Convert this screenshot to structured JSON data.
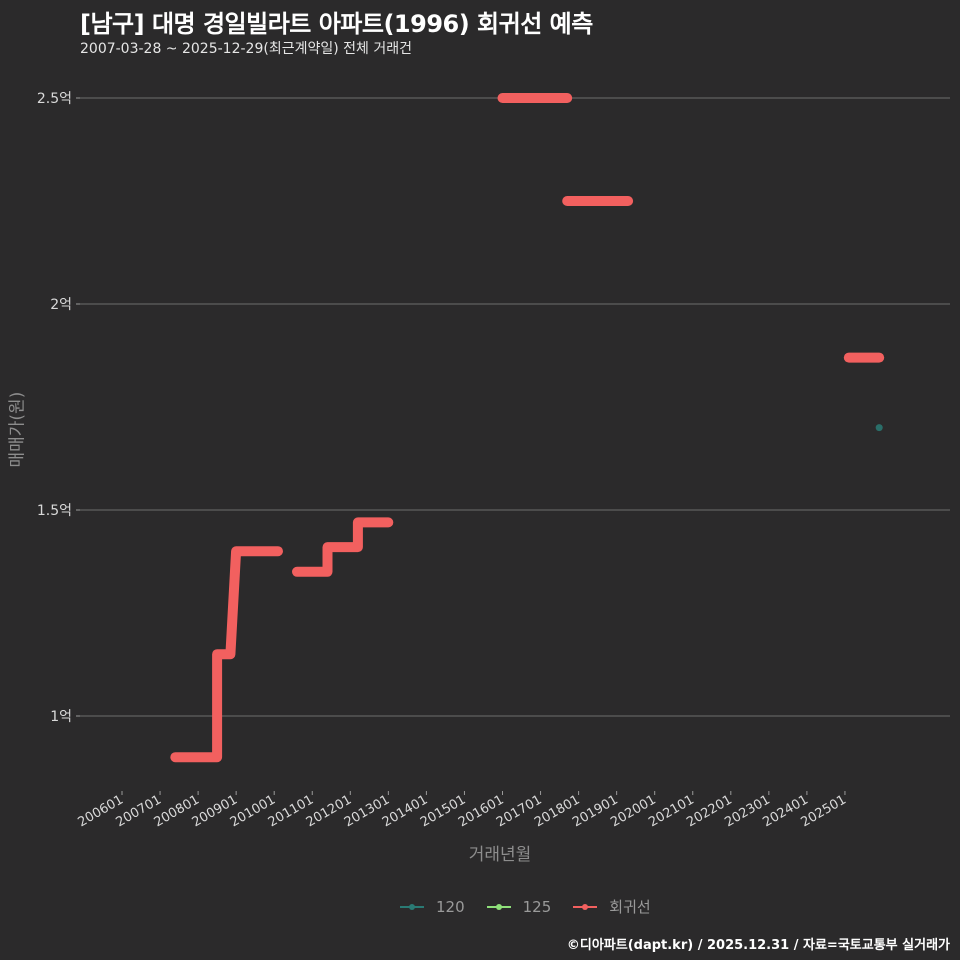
{
  "header": {
    "title": "[남구] 대명 경일빌라트 아파트(1996) 회귀선 예측",
    "subtitle": "2007-03-28 ~ 2025-12-29(최근계약일) 전체 거래건"
  },
  "axes": {
    "ylabel": "매매가(원)",
    "xlabel": "거래년월"
  },
  "legend": {
    "items": [
      {
        "label": "120",
        "color": "#2a7a74"
      },
      {
        "label": "125",
        "color": "#8fe07a"
      },
      {
        "label": "회귀선",
        "color": "#f2605f"
      }
    ]
  },
  "caption": "©디아파트(dapt.kr) / 2025.12.31 / 자료=국토교통부 실거래가",
  "chart_data": {
    "type": "line",
    "title": "[남구] 대명 경일빌라트 아파트(1996) 회귀선 예측",
    "subtitle": "2007-03-28 ~ 2025-12-29(최근계약일) 전체 거래건",
    "xlabel": "거래년월",
    "ylabel": "매매가(원)",
    "x_ticks": [
      "200601",
      "200701",
      "200801",
      "200901",
      "201001",
      "201101",
      "201201",
      "201301",
      "201401",
      "201501",
      "201601",
      "201701",
      "201801",
      "201901",
      "202001",
      "202101",
      "202201",
      "202301",
      "202401",
      "202501"
    ],
    "y_ticks": [
      {
        "value": 1.0,
        "label": "1억"
      },
      {
        "value": 1.5,
        "label": "1.5억"
      },
      {
        "value": 2.0,
        "label": "2억"
      },
      {
        "value": 2.5,
        "label": "2.5억"
      }
    ],
    "ylim": [
      0.82,
      2.55
    ],
    "y_unit": "억원",
    "grid": "horizontal major only",
    "legend_position": "bottom",
    "series": [
      {
        "name": "회귀선",
        "color": "#f2605f",
        "type": "step",
        "segments": [
          [
            {
              "x": 2007.4,
              "y": 0.9
            },
            {
              "x": 2008.5,
              "y": 0.9
            },
            {
              "x": 2008.5,
              "y": 1.15
            },
            {
              "x": 2008.85,
              "y": 1.15
            },
            {
              "x": 2009.0,
              "y": 1.4
            },
            {
              "x": 2010.1,
              "y": 1.4
            }
          ],
          [
            {
              "x": 2010.6,
              "y": 1.35
            },
            {
              "x": 2011.4,
              "y": 1.35
            },
            {
              "x": 2011.4,
              "y": 1.41
            },
            {
              "x": 2012.2,
              "y": 1.41
            },
            {
              "x": 2012.2,
              "y": 1.47
            },
            {
              "x": 2013.0,
              "y": 1.47
            }
          ],
          [
            {
              "x": 2016.0,
              "y": 2.5
            },
            {
              "x": 2017.7,
              "y": 2.5
            }
          ],
          [
            {
              "x": 2017.7,
              "y": 2.25
            },
            {
              "x": 2019.3,
              "y": 2.25
            }
          ],
          [
            {
              "x": 2025.1,
              "y": 1.87
            },
            {
              "x": 2025.9,
              "y": 1.87
            }
          ]
        ]
      },
      {
        "name": "120",
        "color": "#2a7a74",
        "type": "scatter",
        "points": [
          {
            "x": 2025.9,
            "y": 1.7
          }
        ]
      },
      {
        "name": "125",
        "color": "#8fe07a",
        "type": "scatter",
        "points": []
      }
    ]
  }
}
